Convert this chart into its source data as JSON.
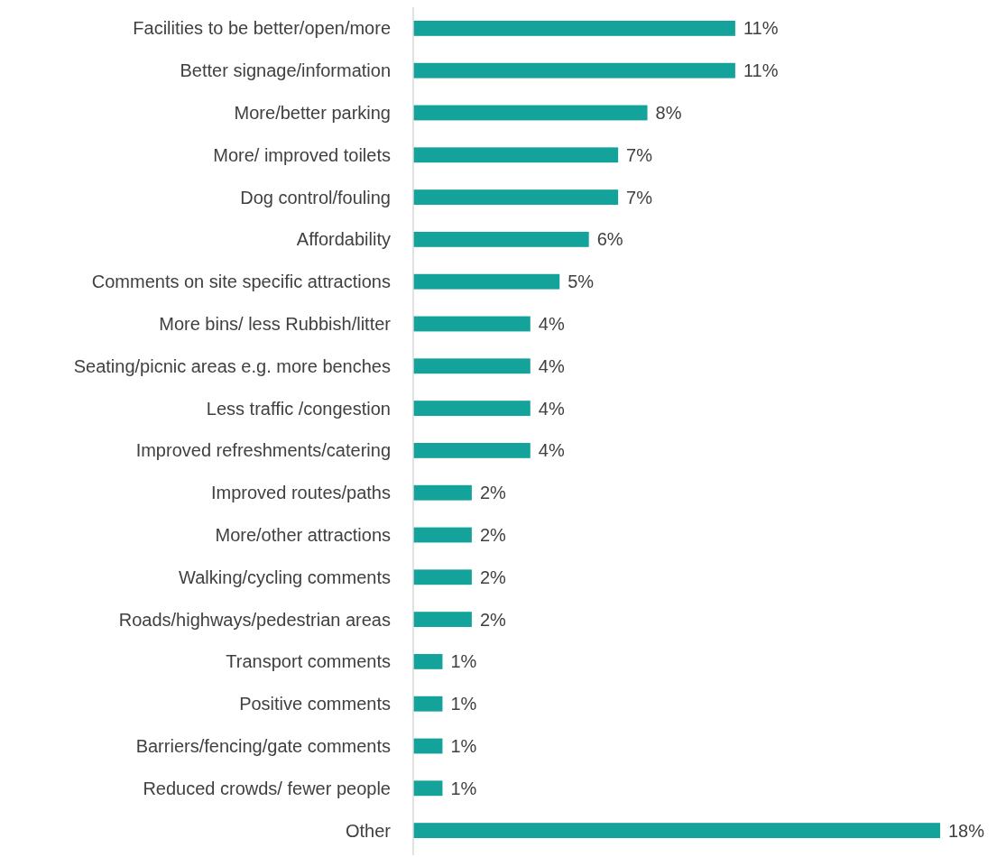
{
  "chart_data": {
    "type": "bar",
    "orientation": "horizontal",
    "categories": [
      "Facilities to be better/open/more",
      "Better signage/information",
      "More/better parking",
      "More/ improved toilets",
      "Dog control/fouling",
      "Affordability",
      "Comments on site specific attractions",
      "More bins/ less Rubbish/litter",
      "Seating/picnic areas e.g. more benches",
      "Less traffic /congestion",
      "Improved refreshments/catering",
      "Improved routes/paths",
      "More/other attractions",
      "Walking/cycling comments",
      "Roads/highways/pedestrian areas",
      "Transport comments",
      "Positive comments",
      "Barriers/fencing/gate comments",
      "Reduced crowds/ fewer people",
      "Other"
    ],
    "values": [
      11,
      11,
      8,
      7,
      7,
      6,
      5,
      4,
      4,
      4,
      4,
      2,
      2,
      2,
      2,
      1,
      1,
      1,
      1,
      18
    ],
    "value_labels": [
      "11%",
      "11%",
      "8%",
      "7%",
      "7%",
      "6%",
      "5%",
      "4%",
      "4%",
      "4%",
      "4%",
      "2%",
      "2%",
      "2%",
      "2%",
      "1%",
      "1%",
      "1%",
      "1%",
      "18%"
    ],
    "color": "#14a39a"
  }
}
